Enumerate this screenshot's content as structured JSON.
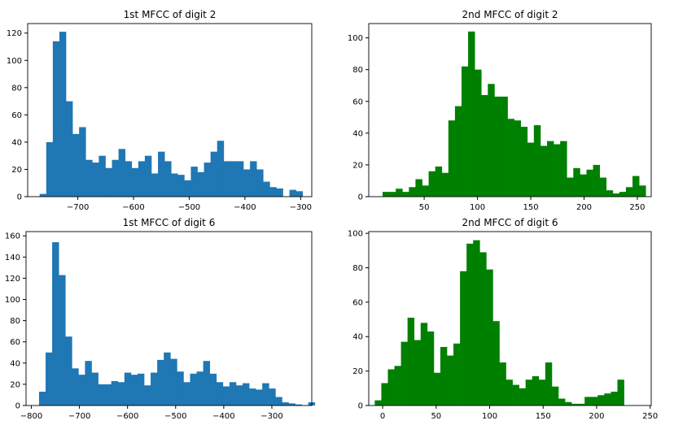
{
  "chart_data": [
    {
      "type": "bar",
      "title": "1st MFCC of digit 2",
      "xlabel": "",
      "ylabel": "",
      "color": "#1f77b4",
      "xlim": [
        -790,
        -280
      ],
      "ylim": [
        0,
        127
      ],
      "xticks": [
        -700,
        -600,
        -500,
        -400,
        -300
      ],
      "xtick_labels": [
        "−700",
        "−600",
        "−500",
        "−400",
        "−300"
      ],
      "yticks": [
        0,
        20,
        40,
        60,
        80,
        100,
        120
      ],
      "ytick_labels": [
        "0",
        "20",
        "40",
        "60",
        "80",
        "100",
        "120"
      ],
      "bin_start": -768.5,
      "bin_width": 11.8,
      "values": [
        2,
        40,
        114,
        121,
        70,
        46,
        51,
        27,
        25,
        30,
        21,
        27,
        35,
        26,
        21,
        26,
        30,
        17,
        33,
        26,
        17,
        16,
        12,
        22,
        18,
        25,
        33,
        41,
        26,
        26,
        26,
        20,
        26,
        20,
        11,
        7,
        6,
        0,
        5,
        4
      ]
    },
    {
      "type": "bar",
      "title": "2nd MFCC of digit 2",
      "xlabel": "",
      "ylabel": "",
      "color": "#008000",
      "xlim": [
        -2,
        263
      ],
      "ylim": [
        0,
        109
      ],
      "xticks": [
        50,
        100,
        150,
        200,
        250
      ],
      "xtick_labels": [
        "50",
        "100",
        "150",
        "200",
        "250"
      ],
      "yticks": [
        0,
        20,
        40,
        60,
        80,
        100
      ],
      "ytick_labels": [
        "0",
        "20",
        "40",
        "60",
        "80",
        "100"
      ],
      "bin_start": 11,
      "bin_width": 6.17,
      "values": [
        3,
        3,
        5,
        3,
        6,
        11,
        7,
        16,
        19,
        15,
        48,
        57,
        82,
        104,
        80,
        64,
        71,
        63,
        63,
        49,
        48,
        44,
        34,
        45,
        32,
        35,
        33,
        35,
        12,
        18,
        14,
        17,
        20,
        12,
        4,
        2,
        3,
        6,
        13,
        7
      ]
    },
    {
      "type": "bar",
      "title": "1st MFCC of digit 6",
      "xlabel": "",
      "ylabel": "",
      "color": "#1f77b4",
      "xlim": [
        -811,
        -217
      ],
      "ylim": [
        0,
        164
      ],
      "xticks": [
        -800,
        -700,
        -600,
        -500,
        -400,
        -300
      ],
      "xtick_labels": [
        "−800",
        "−700",
        "−600",
        "−500",
        "−400",
        "−300"
      ],
      "yticks": [
        0,
        20,
        40,
        60,
        80,
        100,
        120,
        140,
        160
      ],
      "ytick_labels": [
        "0",
        "20",
        "40",
        "60",
        "80",
        "100",
        "120",
        "140",
        "160"
      ],
      "bin_start": -784,
      "bin_width": 13.65,
      "values": [
        13,
        50,
        154,
        123,
        65,
        35,
        29,
        42,
        31,
        20,
        20,
        23,
        22,
        31,
        29,
        30,
        19,
        31,
        43,
        50,
        44,
        32,
        22,
        30,
        32,
        42,
        30,
        22,
        18,
        22,
        19,
        21,
        16,
        15,
        21,
        16,
        8,
        3,
        2,
        1,
        0,
        3
      ]
    },
    {
      "type": "bar",
      "title": "2nd MFCC of digit 6",
      "xlabel": "",
      "ylabel": "",
      "color": "#008000",
      "xlim": [
        -13,
        251
      ],
      "ylim": [
        0,
        101
      ],
      "xticks": [
        0,
        50,
        100,
        150,
        200,
        250
      ],
      "xtick_labels": [
        "0",
        "50",
        "100",
        "150",
        "200",
        "250"
      ],
      "yticks": [
        0,
        20,
        40,
        60,
        80,
        100
      ],
      "ytick_labels": [
        "0",
        "20",
        "40",
        "60",
        "80",
        "100"
      ],
      "bin_start": -7.4,
      "bin_width": 6.13,
      "values": [
        3,
        13,
        21,
        23,
        37,
        51,
        38,
        48,
        43,
        19,
        34,
        29,
        36,
        78,
        94,
        96,
        89,
        79,
        49,
        25,
        15,
        12,
        10,
        15,
        17,
        15,
        25,
        11,
        4,
        2,
        1,
        1,
        5,
        5,
        6,
        7,
        8,
        15
      ]
    }
  ]
}
